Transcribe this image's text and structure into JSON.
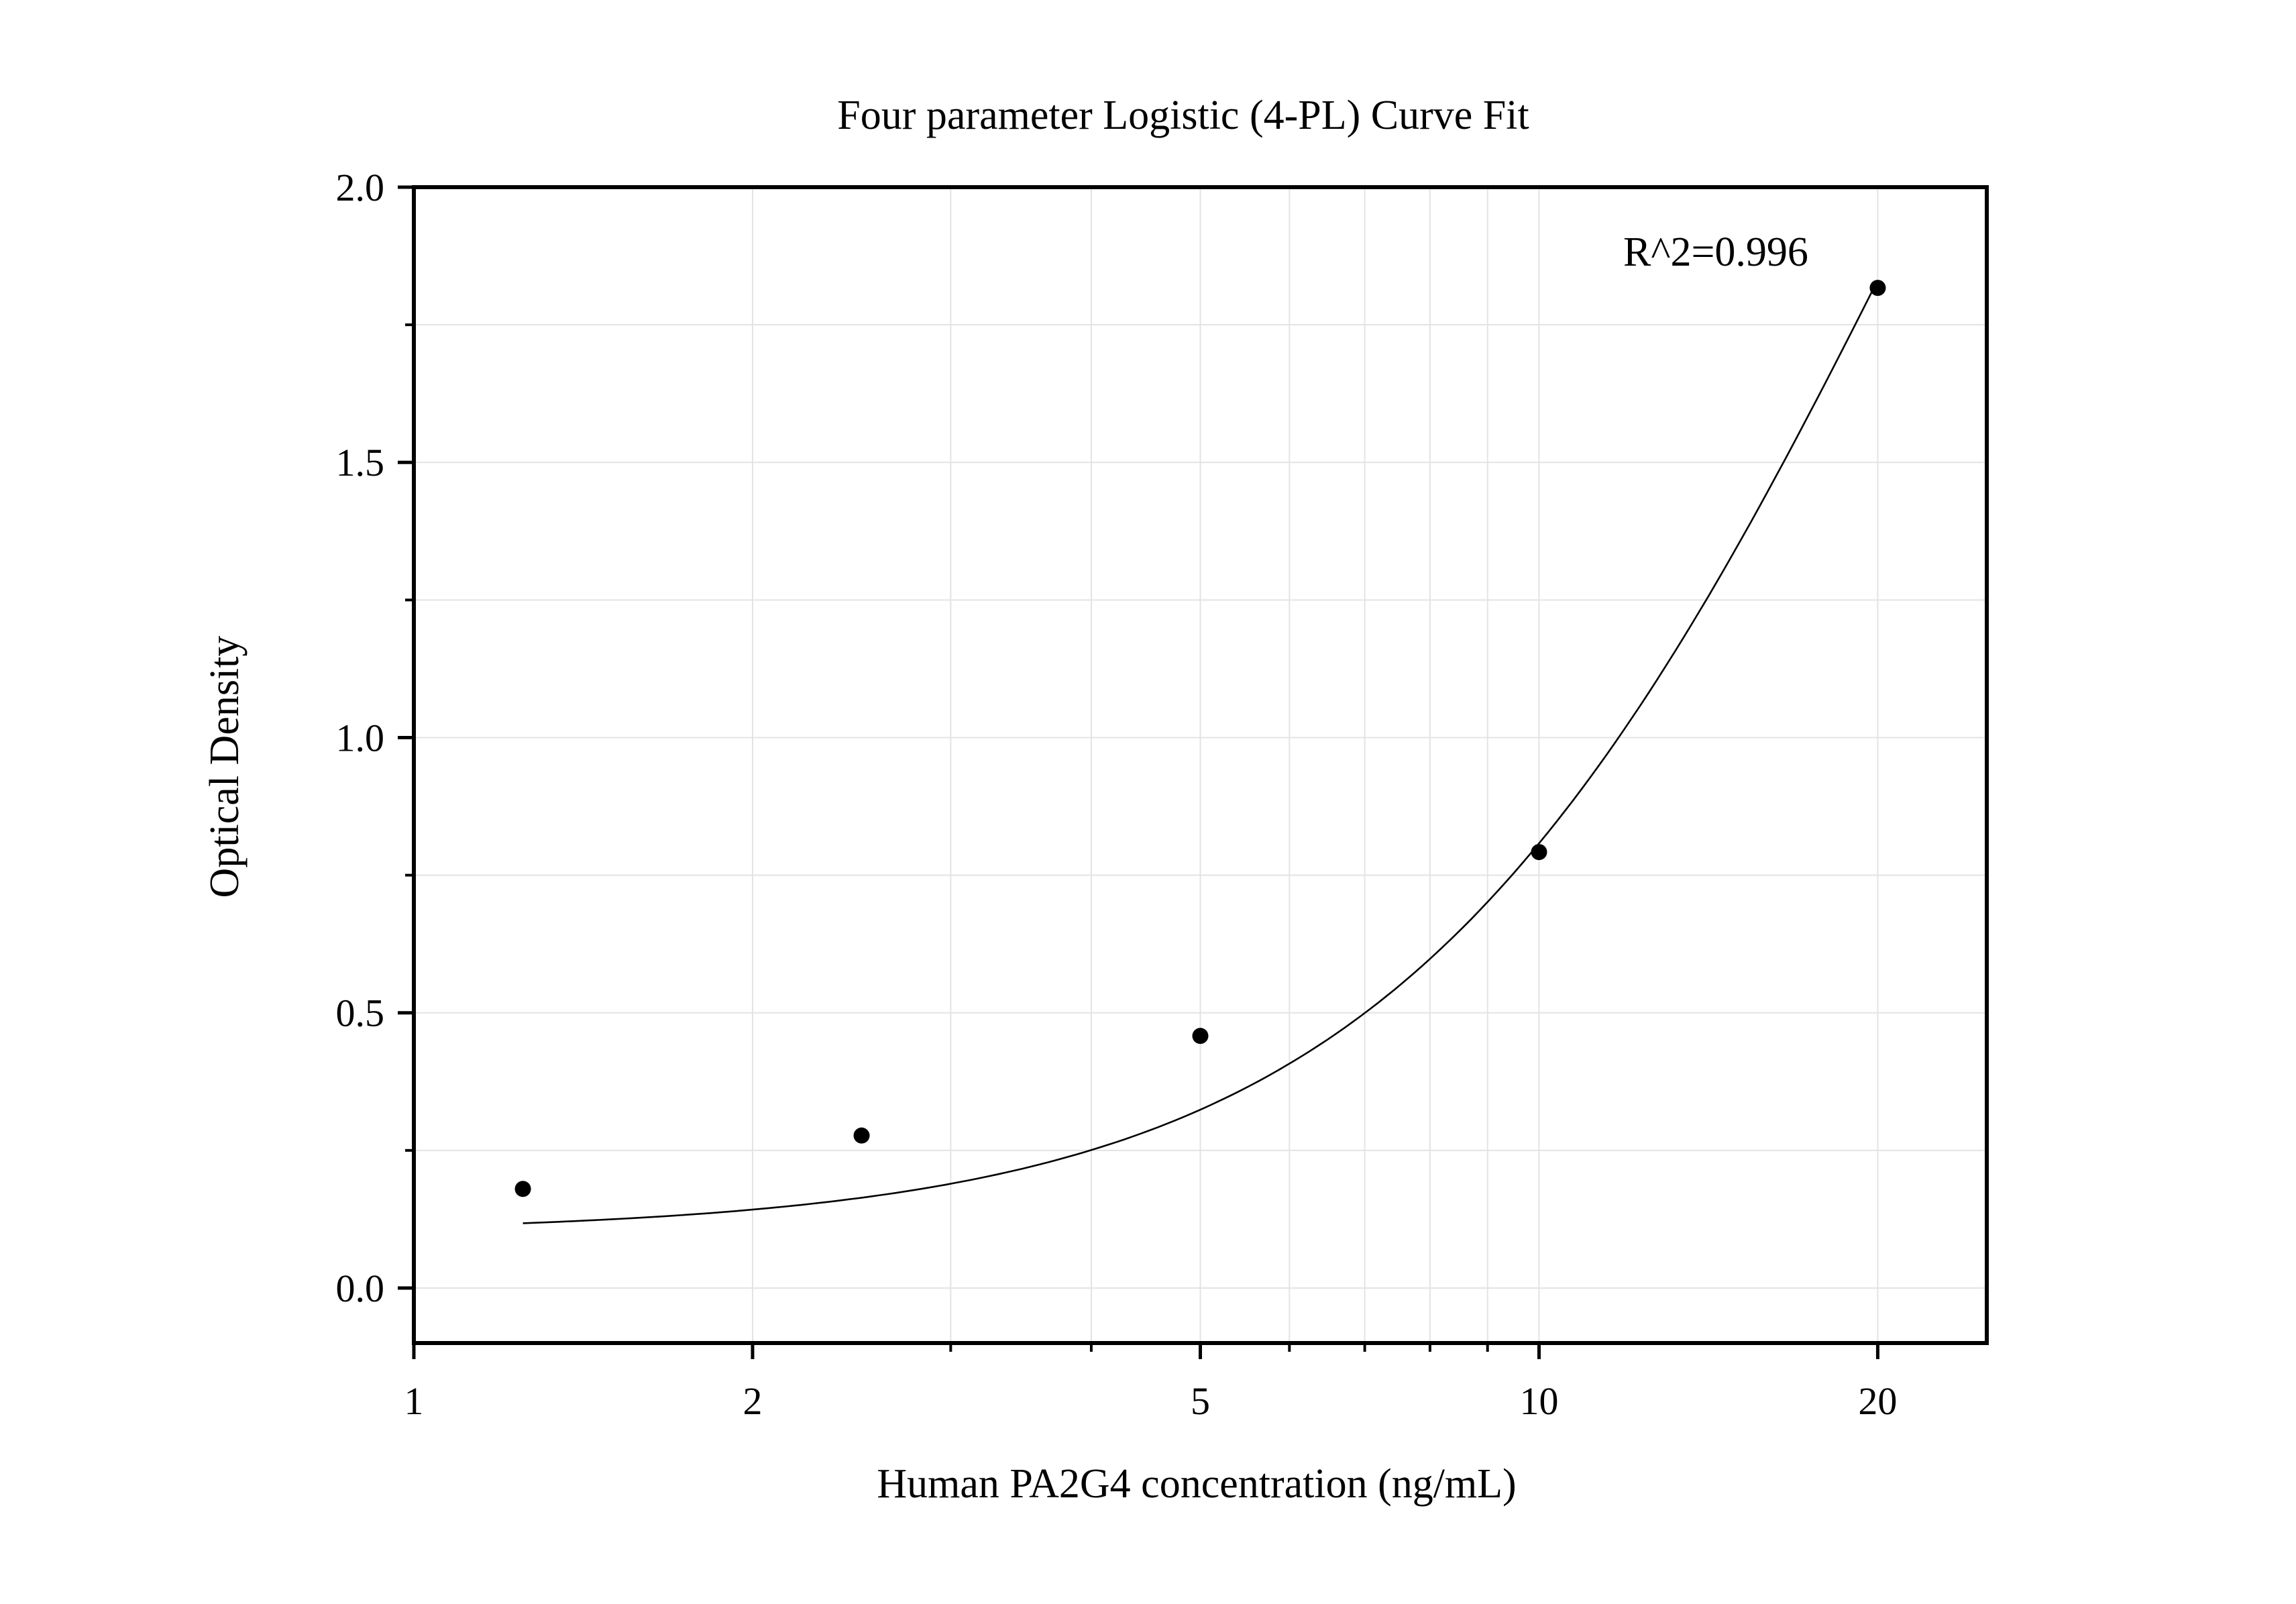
{
  "chart_data": {
    "type": "scatter",
    "title": "Four parameter Logistic (4-PL) Curve Fit",
    "xlabel": "Human PA2G4 concentration (ng/mL)",
    "ylabel": "Optical Density",
    "x_scale": "log",
    "xlim": [
      1,
      25
    ],
    "ylim": [
      -0.1,
      2.0
    ],
    "x_ticks": [
      1,
      2,
      5,
      10,
      20
    ],
    "x_tick_labels": [
      "1",
      "2",
      "5",
      "10",
      "20"
    ],
    "x_minor_ticks": [
      3,
      4,
      6,
      7,
      8,
      9
    ],
    "y_ticks": [
      0.0,
      0.5,
      1.0,
      1.5,
      2.0
    ],
    "y_tick_labels": [
      "0.0",
      "0.5",
      "1.0",
      "1.5",
      "2.0"
    ],
    "y_minor_ticks": [
      0.25,
      0.75,
      1.25,
      1.75
    ],
    "grid": true,
    "series": [
      {
        "kind": "points",
        "x": [
          1.25,
          2.5,
          5,
          10,
          20
        ],
        "y": [
          0.18,
          0.277,
          0.458,
          0.792,
          1.817
        ],
        "color": "#000000"
      },
      {
        "kind": "fit-curve",
        "model": "4PL",
        "params": {
          "A": 0.1,
          "B": 1.87,
          "C": 22.0,
          "D": 3.9
        },
        "x_range": [
          1.25,
          20
        ],
        "color": "#000000"
      }
    ],
    "annotation": "R^2=0.996"
  }
}
